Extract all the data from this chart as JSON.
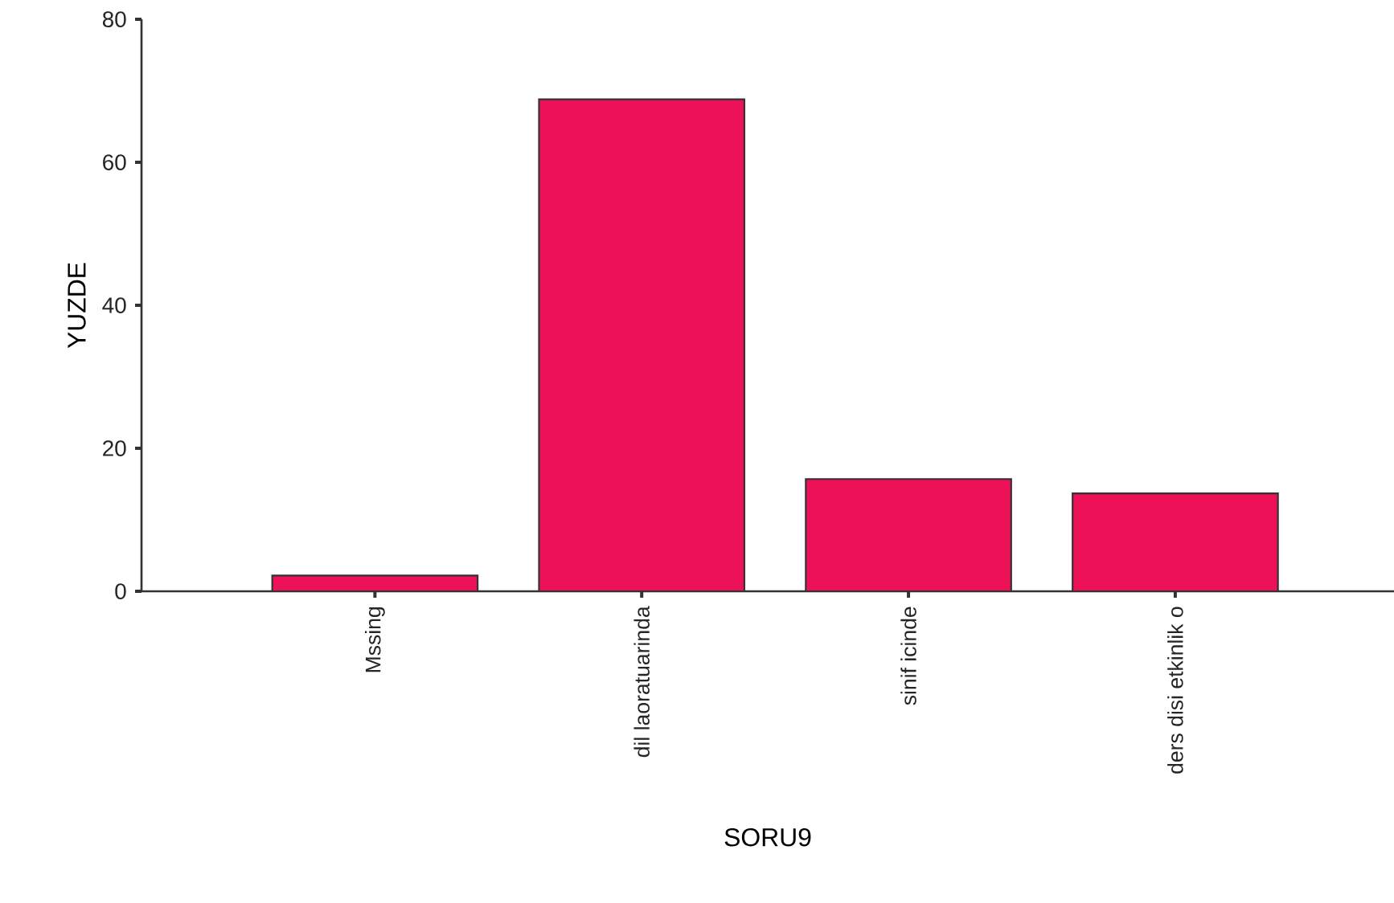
{
  "chart_data": {
    "type": "bar",
    "xlabel": "SORU9",
    "ylabel": "YUZDE",
    "categories": [
      "Mssing",
      "dil laoratuarinda",
      "sinif icinde",
      "ders disi etkinlik o"
    ],
    "values": [
      2.2,
      68.8,
      15.7,
      13.7
    ],
    "color": "#ed1157",
    "ylim": [
      0,
      80
    ],
    "yticks": [
      0,
      20,
      40,
      60,
      80
    ]
  }
}
